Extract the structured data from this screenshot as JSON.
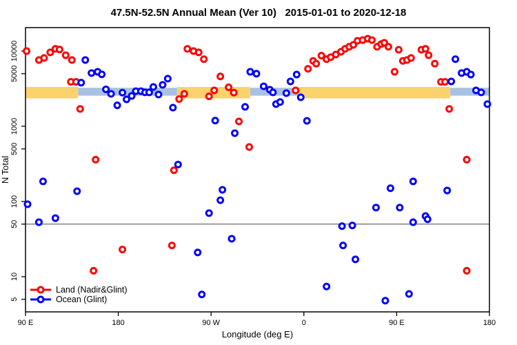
{
  "chart_data": {
    "type": "scatter",
    "title": "47.5N-52.5N Annual Mean (Ver 10)   2015-01-01 to 2020-12-18",
    "xlabel": "Longitude (deg E)",
    "ylabel": "N Total",
    "x_axis": {
      "tick_labels": [
        "90 E",
        "180",
        "90 W",
        "0",
        "90 E",
        "180"
      ],
      "tick_positions_deg": [
        90,
        180,
        270,
        360,
        450,
        540
      ],
      "range_deg": [
        90,
        540
      ]
    },
    "y_axis": {
      "scale": "log",
      "ticks": [
        5,
        10,
        50,
        100,
        500,
        1000,
        5000,
        10000
      ],
      "range": [
        3.5,
        20000
      ]
    },
    "reference_line": {
      "value": 50,
      "color": "#9c9c9c"
    },
    "bands": {
      "land_mean": {
        "color": "#fbd26b",
        "value_top": 3330,
        "value_bottom": 2350,
        "segments_deg": [
          [
            90,
            141
          ],
          [
            237,
            308
          ],
          [
            355,
            502
          ]
        ]
      },
      "ocean_mean": {
        "color": "#a9c2e3",
        "value_top": 3250,
        "value_bottom": 2550,
        "segments_deg": [
          [
            141,
            237
          ],
          [
            308,
            355
          ],
          [
            502,
            540
          ]
        ]
      }
    },
    "legend_position": "bottom-left",
    "series": [
      {
        "name": "Land (Nadir&Glint)",
        "color": "#ff0000",
        "points": [
          [
            91,
            10000
          ],
          [
            103,
            7600
          ],
          [
            108,
            8100
          ],
          [
            114,
            9600
          ],
          [
            119,
            10700
          ],
          [
            123,
            10500
          ],
          [
            129,
            8800
          ],
          [
            135,
            7600
          ],
          [
            134,
            3900
          ],
          [
            139,
            3900
          ],
          [
            143,
            1700
          ],
          [
            156,
            12
          ],
          [
            158,
            360
          ],
          [
            184,
            23
          ],
          [
            232,
            26
          ],
          [
            234,
            260
          ],
          [
            239,
            2300
          ],
          [
            244,
            2700
          ],
          [
            247,
            10700
          ],
          [
            253,
            10000
          ],
          [
            258,
            9600
          ],
          [
            263,
            7800
          ],
          [
            268,
            2500
          ],
          [
            273,
            3000
          ],
          [
            279,
            4600
          ],
          [
            287,
            3300
          ],
          [
            292,
            2800
          ],
          [
            297,
            1160
          ],
          [
            307,
            530
          ],
          [
            352,
            3000
          ],
          [
            364,
            5800
          ],
          [
            369,
            7400
          ],
          [
            372,
            6800
          ],
          [
            377,
            8700
          ],
          [
            382,
            7800
          ],
          [
            386,
            8300
          ],
          [
            391,
            9000
          ],
          [
            396,
            9800
          ],
          [
            400,
            10700
          ],
          [
            404,
            11400
          ],
          [
            408,
            12100
          ],
          [
            412,
            13700
          ],
          [
            417,
            14000
          ],
          [
            422,
            14600
          ],
          [
            426,
            14000
          ],
          [
            431,
            11400
          ],
          [
            435,
            12400
          ],
          [
            438,
            12900
          ],
          [
            442,
            11400
          ],
          [
            448,
            5300
          ],
          [
            452,
            10400
          ],
          [
            456,
            7400
          ],
          [
            460,
            7600
          ],
          [
            464,
            8100
          ],
          [
            474,
            10400
          ],
          [
            478,
            10700
          ],
          [
            481,
            8800
          ],
          [
            487,
            6800
          ],
          [
            493,
            3900
          ],
          [
            497,
            3900
          ],
          [
            501,
            1700
          ],
          [
            518,
            360
          ],
          [
            518,
            12
          ]
        ]
      },
      {
        "name": "Ocean (Glint)",
        "color": "#0000ff",
        "points": [
          [
            92,
            92
          ],
          [
            103,
            53
          ],
          [
            107,
            185
          ],
          [
            119,
            60
          ],
          [
            140,
            137
          ],
          [
            144,
            3800
          ],
          [
            148,
            7600
          ],
          [
            154,
            5100
          ],
          [
            160,
            5300
          ],
          [
            164,
            4900
          ],
          [
            168,
            3100
          ],
          [
            173,
            2700
          ],
          [
            179,
            1900
          ],
          [
            184,
            2800
          ],
          [
            188,
            2280
          ],
          [
            193,
            2530
          ],
          [
            197,
            2930
          ],
          [
            202,
            2930
          ],
          [
            206,
            2820
          ],
          [
            210,
            2820
          ],
          [
            214,
            3330
          ],
          [
            219,
            2640
          ],
          [
            223,
            3550
          ],
          [
            228,
            4300
          ],
          [
            233,
            1770
          ],
          [
            238,
            310
          ],
          [
            257,
            21
          ],
          [
            261,
            5.8
          ],
          [
            268,
            70
          ],
          [
            274,
            1190
          ],
          [
            279,
            104
          ],
          [
            281,
            143
          ],
          [
            290,
            32
          ],
          [
            293,
            810
          ],
          [
            303,
            1810
          ],
          [
            308,
            5300
          ],
          [
            314,
            5000
          ],
          [
            321,
            3400
          ],
          [
            327,
            3060
          ],
          [
            330,
            2820
          ],
          [
            333,
            1970
          ],
          [
            337,
            2100
          ],
          [
            343,
            2760
          ],
          [
            347,
            3950
          ],
          [
            353,
            4870
          ],
          [
            357,
            2430
          ],
          [
            363,
            1180
          ],
          [
            382,
            7.4
          ],
          [
            397,
            47
          ],
          [
            398,
            26
          ],
          [
            407,
            48
          ],
          [
            410,
            17
          ],
          [
            430,
            83
          ],
          [
            439,
            4.8
          ],
          [
            444,
            150
          ],
          [
            453,
            83
          ],
          [
            462,
            5.9
          ],
          [
            466,
            53
          ],
          [
            466,
            185
          ],
          [
            478,
            64
          ],
          [
            480,
            58
          ],
          [
            499,
            140
          ],
          [
            503,
            3950
          ],
          [
            507,
            7800
          ],
          [
            513,
            5100
          ],
          [
            518,
            5300
          ],
          [
            522,
            4870
          ],
          [
            527,
            3000
          ],
          [
            532,
            2820
          ],
          [
            538,
            1970
          ]
        ]
      }
    ]
  }
}
